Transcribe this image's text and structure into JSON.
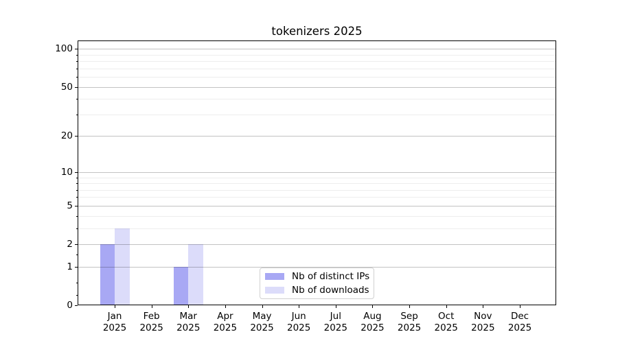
{
  "chart_data": {
    "type": "bar",
    "title": "tokenizers 2025",
    "categories": [
      "Jan 2025",
      "Feb 2025",
      "Mar 2025",
      "Apr 2025",
      "May 2025",
      "Jun 2025",
      "Jul 2025",
      "Aug 2025",
      "Sep 2025",
      "Oct 2025",
      "Nov 2025",
      "Dec 2025"
    ],
    "series": [
      {
        "name": "Nb of distinct IPs",
        "color": "#a8a8f4",
        "values": [
          2,
          0,
          1,
          0,
          0,
          0,
          0,
          0,
          0,
          0,
          0,
          0
        ]
      },
      {
        "name": "Nb of downloads",
        "color": "#dcdcfa",
        "values": [
          3,
          0,
          2,
          0,
          0,
          0,
          0,
          0,
          0,
          0,
          0,
          0
        ]
      }
    ],
    "xlabel": "",
    "ylabel": "",
    "yscale": "log1p",
    "ylim": [
      0,
      116
    ],
    "yticks": [
      0,
      1,
      2,
      5,
      10,
      20,
      50,
      100
    ],
    "y_minor_gridlines": [
      3,
      4,
      6,
      7,
      8,
      9,
      30,
      40,
      60,
      70,
      80,
      90
    ],
    "y_minor_axis_ticks": [
      0.2,
      0.5,
      1.5
    ],
    "grid": true,
    "legend_position": "lower center"
  }
}
